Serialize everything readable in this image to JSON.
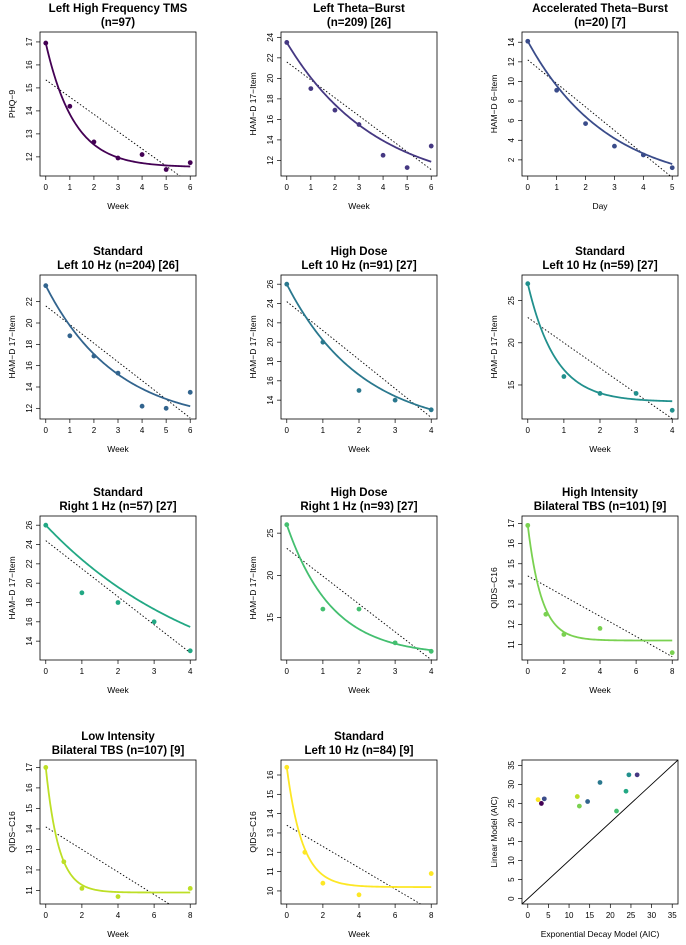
{
  "chart_data": [
    {
      "type": "scatter",
      "title": [
        "Left High Frequency TMS",
        "(n=97)"
      ],
      "xlabel": "Week",
      "ylabel": "PHQ−9",
      "x": [
        0,
        1,
        2,
        3,
        4,
        5,
        6
      ],
      "y": [
        16.95,
        14.2,
        12.65,
        11.95,
        12.1,
        11.45,
        11.75
      ],
      "exp_fit": {
        "a": 5.4,
        "k": 0.85,
        "c": 11.55
      },
      "linear_fit": {
        "b0": 15.35,
        "b1": -0.75
      },
      "xticks": [
        0,
        1,
        2,
        3,
        4,
        5,
        6
      ],
      "yticks": [
        12,
        13,
        14,
        15,
        16,
        17
      ],
      "xlim": [
        0,
        6
      ],
      "ylim": [
        11.4,
        17.2
      ],
      "color": "#440154"
    },
    {
      "type": "scatter",
      "title": [
        "Left Theta−Burst",
        "(n=209) [26]"
      ],
      "xlabel": "Week",
      "ylabel": "HAM−D 17−Item",
      "x": [
        0,
        1,
        2,
        3,
        4,
        5,
        6
      ],
      "y": [
        23.5,
        19.0,
        16.9,
        15.5,
        12.5,
        11.3,
        13.4
      ],
      "exp_fit": {
        "a": 14.5,
        "k": 0.27,
        "c": 9.0
      },
      "linear_fit": {
        "b0": 21.6,
        "b1": -1.75
      },
      "xticks": [
        0,
        1,
        2,
        3,
        4,
        5,
        6
      ],
      "yticks": [
        12,
        14,
        16,
        18,
        20,
        22,
        24
      ],
      "xlim": [
        0,
        6
      ],
      "ylim": [
        11.0,
        24.0
      ],
      "color": "#453882"
    },
    {
      "type": "scatter",
      "title": [
        "Accelerated Theta−Burst",
        "(n=20) [7]"
      ],
      "xlabel": "Day",
      "ylabel": "HAM−D 6−Item",
      "x": [
        0,
        1,
        2,
        3,
        4,
        5
      ],
      "y": [
        14.1,
        9.1,
        5.7,
        3.4,
        2.5,
        1.2
      ],
      "exp_fit": {
        "a": 15.0,
        "k": 0.36,
        "c": -0.9
      },
      "linear_fit": {
        "b0": 12.2,
        "b1": -2.4
      },
      "xticks": [
        0,
        1,
        2,
        3,
        4,
        5
      ],
      "yticks": [
        2,
        4,
        6,
        8,
        10,
        12,
        14
      ],
      "xlim": [
        0,
        5
      ],
      "ylim": [
        0.9,
        14.5
      ],
      "color": "#3a4c8a"
    },
    {
      "type": "scatter",
      "title": [
        "Standard",
        "Left 10 Hz (n=204) [26]"
      ],
      "xlabel": "Week",
      "ylabel": "HAM−D 17−Item",
      "x": [
        0,
        1,
        2,
        3,
        4,
        5,
        6
      ],
      "y": [
        23.5,
        18.8,
        16.9,
        15.3,
        12.2,
        12.0,
        13.5
      ],
      "exp_fit": {
        "a": 13.0,
        "k": 0.34,
        "c": 10.5
      },
      "linear_fit": {
        "b0": 21.6,
        "b1": -1.75
      },
      "xticks": [
        0,
        1,
        2,
        3,
        4,
        5,
        6
      ],
      "yticks": [
        12,
        14,
        16,
        18,
        20,
        22
      ],
      "xlim": [
        0,
        6
      ],
      "ylim": [
        11.5,
        24.0
      ],
      "color": "#32648e"
    },
    {
      "type": "scatter",
      "title": [
        "High Dose",
        "Left 10 Hz (n=91) [27]"
      ],
      "xlabel": "Week",
      "ylabel": "HAM−D 17−Item",
      "x": [
        0,
        1,
        2,
        3,
        4
      ],
      "y": [
        26.0,
        20.0,
        15.0,
        14.0,
        13.0
      ],
      "exp_fit": {
        "a": 15.2,
        "k": 0.48,
        "c": 10.8
      },
      "linear_fit": {
        "b0": 24.2,
        "b1": -3.0
      },
      "xticks": [
        0,
        1,
        2,
        3,
        4
      ],
      "yticks": [
        14,
        16,
        18,
        20,
        22,
        24,
        26
      ],
      "xlim": [
        0,
        4
      ],
      "ylim": [
        12.6,
        26.4
      ],
      "color": "#2a788e"
    },
    {
      "type": "scatter",
      "title": [
        "Standard",
        "Left 10 Hz (n=59) [27]"
      ],
      "xlabel": "Week",
      "ylabel": "HAM−D 17−Item",
      "x": [
        0,
        1,
        2,
        3,
        4
      ],
      "y": [
        27.0,
        16.0,
        14.0,
        14.0,
        12.0
      ],
      "exp_fit": {
        "a": 14.0,
        "k": 1.3,
        "c": 13.0
      },
      "linear_fit": {
        "b0": 23.0,
        "b1": -3.0
      },
      "xticks": [
        0,
        1,
        2,
        3,
        4
      ],
      "yticks": [
        15,
        20,
        25
      ],
      "xlim": [
        0,
        4
      ],
      "ylim": [
        11.6,
        27.4
      ],
      "color": "#21908d"
    },
    {
      "type": "scatter",
      "title": [
        "Standard",
        "Right 1 Hz (n=57) [27]"
      ],
      "xlabel": "Week",
      "ylabel": "HAM−D 17−Item",
      "x": [
        0,
        1,
        2,
        3,
        4
      ],
      "y": [
        26.0,
        19.0,
        18.0,
        16.0,
        13.0
      ],
      "exp_fit": {
        "a": 18.0,
        "k": 0.22,
        "c": 8.0
      },
      "linear_fit": {
        "b0": 24.4,
        "b1": -2.9
      },
      "xticks": [
        0,
        1,
        2,
        3,
        4
      ],
      "yticks": [
        14,
        16,
        18,
        20,
        22,
        24,
        26
      ],
      "xlim": [
        0,
        4
      ],
      "ylim": [
        12.6,
        26.4
      ],
      "color": "#22a884"
    },
    {
      "type": "scatter",
      "title": [
        "High Dose",
        "Right 1 Hz (n=93) [27]"
      ],
      "xlabel": "Week",
      "ylabel": "HAM−D 17−Item",
      "x": [
        0,
        1,
        2,
        3,
        4
      ],
      "y": [
        26.0,
        16.0,
        16.0,
        12.0,
        11.0
      ],
      "exp_fit": {
        "a": 15.5,
        "k": 0.8,
        "c": 10.5
      },
      "linear_fit": {
        "b0": 23.2,
        "b1": -3.3
      },
      "xticks": [
        0,
        1,
        2,
        3,
        4
      ],
      "yticks": [
        15,
        20,
        25
      ],
      "xlim": [
        0,
        4
      ],
      "ylim": [
        10.6,
        26.4
      ],
      "color": "#44bf70"
    },
    {
      "type": "scatter",
      "title": [
        "High Intensity",
        "Bilateral TBS (n=101) [9]"
      ],
      "xlabel": "Week",
      "ylabel": "QIDS−C16",
      "x": [
        0,
        1,
        2,
        4,
        8
      ],
      "y": [
        16.9,
        12.5,
        11.5,
        11.8,
        10.6
      ],
      "exp_fit": {
        "a": 5.7,
        "k": 1.3,
        "c": 11.2
      },
      "linear_fit": {
        "b0": 14.4,
        "b1": -0.5
      },
      "xticks": [
        0,
        2,
        4,
        6,
        8
      ],
      "yticks": [
        11,
        12,
        13,
        14,
        15,
        16,
        17
      ],
      "xlim": [
        0,
        8
      ],
      "ylim": [
        10.5,
        17.1
      ],
      "color": "#7ad151"
    },
    {
      "type": "scatter",
      "title": [
        "Low Intensity",
        "Bilateral TBS (n=107) [9]"
      ],
      "xlabel": "Week",
      "ylabel": "QIDS−C16",
      "x": [
        0,
        1,
        2,
        4,
        8
      ],
      "y": [
        17.0,
        12.4,
        11.1,
        10.7,
        11.1
      ],
      "exp_fit": {
        "a": 6.1,
        "k": 1.4,
        "c": 10.9
      },
      "linear_fit": {
        "b0": 14.1,
        "b1": -0.55
      },
      "xticks": [
        0,
        2,
        4,
        6,
        8
      ],
      "yticks": [
        11,
        12,
        13,
        14,
        15,
        16,
        17
      ],
      "xlim": [
        0,
        8
      ],
      "ylim": [
        10.6,
        17.1
      ],
      "color": "#bddf26"
    },
    {
      "type": "scatter",
      "title": [
        "Standard",
        "Left 10 Hz (n=84) [9]"
      ],
      "xlabel": "Week",
      "ylabel": "QIDS−C16",
      "x": [
        0,
        1,
        2,
        4,
        8
      ],
      "y": [
        16.4,
        12.0,
        10.4,
        9.8,
        10.9
      ],
      "exp_fit": {
        "a": 6.2,
        "k": 1.15,
        "c": 10.2
      },
      "linear_fit": {
        "b0": 13.4,
        "b1": -0.55
      },
      "xticks": [
        0,
        2,
        4,
        6,
        8
      ],
      "yticks": [
        10,
        11,
        12,
        13,
        14,
        15,
        16
      ],
      "xlim": [
        0,
        8
      ],
      "ylim": [
        9.6,
        16.5
      ],
      "color": "#fde725"
    },
    {
      "type": "scatter",
      "title": [
        "",
        ""
      ],
      "xlabel": "Exponential Decay Model (AIC)",
      "ylabel": "Linear Model (AIC)",
      "reference_line": "y = x",
      "points": [
        {
          "x": 2.5,
          "y": 26.0,
          "color": "#fde725"
        },
        {
          "x": 3.3,
          "y": 25.0,
          "color": "#440154"
        },
        {
          "x": 4.0,
          "y": 26.2,
          "color": "#3a4c8a"
        },
        {
          "x": 12.0,
          "y": 26.8,
          "color": "#bddf26"
        },
        {
          "x": 12.5,
          "y": 24.3,
          "color": "#7ad151"
        },
        {
          "x": 14.5,
          "y": 25.5,
          "color": "#32648e"
        },
        {
          "x": 17.5,
          "y": 30.5,
          "color": "#2a788e"
        },
        {
          "x": 21.5,
          "y": 23.0,
          "color": "#44bf70"
        },
        {
          "x": 23.8,
          "y": 28.2,
          "color": "#22a884"
        },
        {
          "x": 24.5,
          "y": 32.5,
          "color": "#21908d"
        },
        {
          "x": 26.5,
          "y": 32.5,
          "color": "#453882"
        }
      ],
      "xticks": [
        0,
        5,
        10,
        15,
        20,
        25,
        30,
        35
      ],
      "yticks": [
        0,
        5,
        10,
        15,
        20,
        25,
        30,
        35
      ],
      "xlim": [
        0,
        35
      ],
      "ylim": [
        0,
        35
      ]
    }
  ]
}
